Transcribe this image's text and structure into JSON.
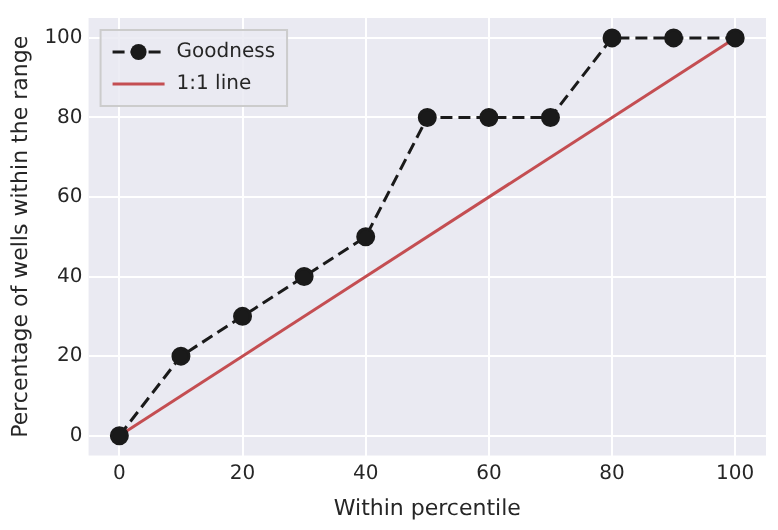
{
  "chart_data": {
    "type": "line",
    "xlabel": "Within percentile",
    "ylabel": "Percentage of wells within the range",
    "x": [
      0,
      10,
      20,
      30,
      40,
      50,
      60,
      70,
      80,
      90,
      100
    ],
    "series": [
      {
        "name": "Goodness",
        "color": "#1a1a1a",
        "values": [
          0,
          20,
          30,
          40,
          50,
          80,
          80,
          80,
          100,
          100,
          100
        ],
        "marker": "circle",
        "line_style": "dashed"
      },
      {
        "name": "1:1 line",
        "color": "#c44e52",
        "x": [
          0,
          100
        ],
        "values": [
          0,
          100
        ],
        "marker": "none",
        "line_style": "solid"
      }
    ],
    "xlim": [
      -5,
      105
    ],
    "ylim": [
      -5,
      105
    ],
    "xticks": [
      0,
      20,
      40,
      60,
      80,
      100
    ],
    "yticks": [
      0,
      20,
      40,
      60,
      80,
      100
    ],
    "grid": true,
    "legend": "top left"
  }
}
